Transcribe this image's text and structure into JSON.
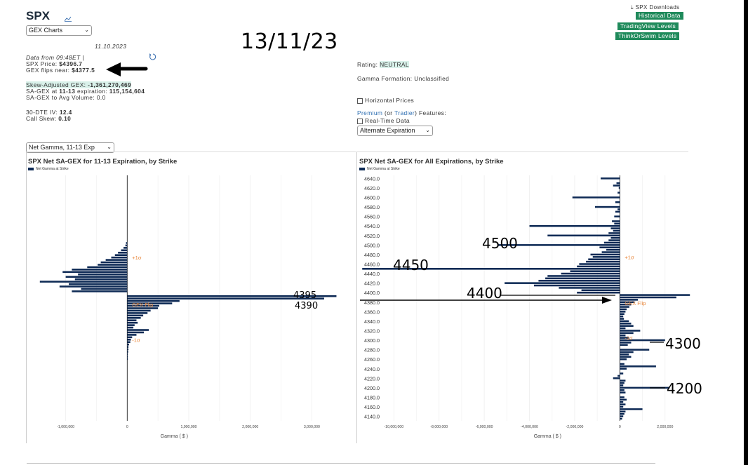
{
  "header": {
    "ticker": "SPX",
    "chart_select": "GEX Charts",
    "date_small": "11.10.2023",
    "big_date": "13/11/23",
    "data_from": "Data from 09:48ET |",
    "price_label": "SPX Price: ",
    "price_value": "$4396.7",
    "flip_label": "GEX flips near: ",
    "flip_value": "$4377.5",
    "skew_label": "Skew-Adjusted GEX: ",
    "skew_value": "-1,361,270,469",
    "sagex_label": "SA-GEX at ",
    "sagex_exp": "11-13",
    "sagex_mid": " expiration: ",
    "sagex_value": "115,154,604",
    "sagex_vol": "SA-GEX to Avg Volume: 0.0",
    "iv_label": "30-DTE IV: ",
    "iv_value": "12.4",
    "skew_call_label": "Call Skew: ",
    "skew_call_value": "0.10"
  },
  "downloads": {
    "title": "SPX Downloads",
    "buttons": [
      "Historical Data",
      "TradingView Levels",
      "ThinkOrSwim Levels"
    ]
  },
  "middle": {
    "rating_label": "Rating: ",
    "rating_value": "NEUTRAL",
    "gamma_formation": "Gamma Formation: Unclassified",
    "horizontal_prices": "Horizontal Prices",
    "premium": "Premium",
    "or": " (or ",
    "tradier": "Tradier",
    "features": ") Features:",
    "realtime": "Real-Time Data",
    "alt_exp": "Alternate Expiration"
  },
  "view_select": "Net Gamma, 11-13 Exp",
  "colors": {
    "bar": "#0e2a55",
    "orange": "#e8863a",
    "green_button": "#1f8a5b"
  },
  "chart_data": [
    {
      "type": "bar",
      "orientation": "horizontal",
      "title": "SPX Net SA-GEX for 11-13 Expiration, by Strike",
      "legend": "Net Gamma at Strike",
      "xlabel": "Gamma ( $ )",
      "xlim": [
        -1600000,
        3600000
      ],
      "xticks": [
        -1000000,
        0,
        1000000,
        2000000,
        3000000
      ],
      "xtick_labels": [
        "-1,000,000",
        "0",
        "1,000,000",
        "2,000,000",
        "3,000,000"
      ],
      "strike_range": [
        4140,
        4645
      ],
      "values": [
        [
          4505,
          -20000
        ],
        [
          4500,
          -30000
        ],
        [
          4495,
          -60000
        ],
        [
          4490,
          -100000
        ],
        [
          4485,
          -150000
        ],
        [
          4480,
          -200000
        ],
        [
          4475,
          -260000
        ],
        [
          4470,
          -350000
        ],
        [
          4465,
          -430000
        ],
        [
          4460,
          -480000
        ],
        [
          4455,
          -650000
        ],
        [
          4450,
          -900000
        ],
        [
          4445,
          -1050000
        ],
        [
          4440,
          -800000
        ],
        [
          4435,
          -1000000
        ],
        [
          4430,
          -850000
        ],
        [
          4425,
          -1420000
        ],
        [
          4420,
          -950000
        ],
        [
          4415,
          -1100000
        ],
        [
          4410,
          -750000
        ],
        [
          4405,
          -900000
        ],
        [
          4395,
          3400000
        ],
        [
          4390,
          3200000
        ],
        [
          4385,
          850000
        ],
        [
          4380,
          730000
        ],
        [
          4375,
          520000
        ],
        [
          4370,
          500000
        ],
        [
          4365,
          380000
        ],
        [
          4360,
          330000
        ],
        [
          4355,
          260000
        ],
        [
          4350,
          220000
        ],
        [
          4345,
          150000
        ],
        [
          4340,
          170000
        ],
        [
          4335,
          120000
        ],
        [
          4330,
          100000
        ],
        [
          4325,
          350000
        ],
        [
          4320,
          270000
        ],
        [
          4315,
          150000
        ],
        [
          4310,
          80000
        ],
        [
          4305,
          60000
        ],
        [
          4300,
          50000
        ],
        [
          4295,
          30000
        ],
        [
          4290,
          20000
        ],
        [
          4285,
          20000
        ],
        [
          4280,
          15000
        ],
        [
          4275,
          10000
        ],
        [
          4270,
          10000
        ],
        [
          4265,
          10000
        ]
      ],
      "annotations": [
        {
          "text": "+1σ",
          "strike": 4475
        },
        {
          "text": "GEX Flip",
          "strike": 4378
        },
        {
          "text": "-1σ",
          "strike": 4305
        }
      ],
      "handwritten": [
        "4395",
        "4390"
      ]
    },
    {
      "type": "bar",
      "orientation": "horizontal",
      "title": "SPX Net SA-GEX for All Expirations, by Strike",
      "legend": "Net Gamma at Strike",
      "xlabel": "Gamma ( $ )",
      "xlim": [
        -11500000,
        3000000
      ],
      "xticks": [
        -10000000,
        -8000000,
        -6000000,
        -4000000,
        -2000000,
        0,
        2000000
      ],
      "xtick_labels": [
        "-10,000,000",
        "-8,000,000",
        "-6,000,000",
        "-4,000,000",
        "-2,000,000",
        "0",
        "2,000,000"
      ],
      "yticks": [
        "4640.0",
        "4620.0",
        "4600.0",
        "4580.0",
        "4560.0",
        "4540.0",
        "4520.0",
        "4500.0",
        "4480.0",
        "4460.0",
        "4440.0",
        "4420.0",
        "4400.0",
        "4380.0",
        "4360.0",
        "4340.0",
        "4320.0",
        "4300.0",
        "4280.0",
        "4260.0",
        "4240.0",
        "4220.0",
        "4200.0",
        "4180.0",
        "4160.0",
        "4140.0"
      ],
      "strike_range": [
        4135,
        4645
      ],
      "values": [
        [
          4650,
          0
        ],
        [
          4640,
          -850000
        ],
        [
          4630,
          -150000
        ],
        [
          4625,
          -300000
        ],
        [
          4620,
          -50000
        ],
        [
          4610,
          -100000
        ],
        [
          4600,
          -2100000
        ],
        [
          4590,
          -200000
        ],
        [
          4580,
          -1100000
        ],
        [
          4575,
          -100000
        ],
        [
          4570,
          -200000
        ],
        [
          4560,
          -250000
        ],
        [
          4550,
          -350000
        ],
        [
          4545,
          -250000
        ],
        [
          4540,
          -4000000
        ],
        [
          4535,
          -400000
        ],
        [
          4530,
          -300000
        ],
        [
          4525,
          -500000
        ],
        [
          4520,
          -3200000
        ],
        [
          4515,
          -400000
        ],
        [
          4510,
          -500000
        ],
        [
          4505,
          -700000
        ],
        [
          4500,
          -5400000
        ],
        [
          4495,
          -900000
        ],
        [
          4490,
          -600000
        ],
        [
          4485,
          -800000
        ],
        [
          4480,
          -1300000
        ],
        [
          4475,
          -1200000
        ],
        [
          4470,
          -1400000
        ],
        [
          4465,
          -1500000
        ],
        [
          4460,
          -1800000
        ],
        [
          4455,
          -1900000
        ],
        [
          4450,
          -11400000
        ],
        [
          4445,
          -2200000
        ],
        [
          4440,
          -2600000
        ],
        [
          4435,
          -3200000
        ],
        [
          4430,
          -3300000
        ],
        [
          4425,
          -3600000
        ],
        [
          4420,
          -5100000
        ],
        [
          4415,
          -3800000
        ],
        [
          4410,
          -2700000
        ],
        [
          4405,
          -1700000
        ],
        [
          4400,
          -1900000
        ],
        [
          4395,
          3100000
        ],
        [
          4390,
          2500000
        ],
        [
          4385,
          800000
        ],
        [
          4380,
          650000
        ],
        [
          4375,
          500000
        ],
        [
          4370,
          420000
        ],
        [
          4365,
          300000
        ],
        [
          4360,
          250000
        ],
        [
          4355,
          200000
        ],
        [
          4350,
          150000
        ],
        [
          4345,
          180000
        ],
        [
          4340,
          400000
        ],
        [
          4335,
          500000
        ],
        [
          4330,
          600000
        ],
        [
          4325,
          250000
        ],
        [
          4320,
          900000
        ],
        [
          4315,
          600000
        ],
        [
          4310,
          250000
        ],
        [
          4305,
          400000
        ],
        [
          4300,
          2000000
        ],
        [
          4295,
          500000
        ],
        [
          4290,
          350000
        ],
        [
          4280,
          1300000
        ],
        [
          4275,
          600000
        ],
        [
          4270,
          400000
        ],
        [
          4265,
          500000
        ],
        [
          4260,
          300000
        ],
        [
          4250,
          200000
        ],
        [
          4245,
          1600000
        ],
        [
          4240,
          300000
        ],
        [
          4230,
          150000
        ],
        [
          4225,
          -100000
        ],
        [
          4220,
          -300000
        ],
        [
          4215,
          250000
        ],
        [
          4210,
          200000
        ],
        [
          4205,
          150000
        ],
        [
          4200,
          2200000
        ],
        [
          4195,
          200000
        ],
        [
          4190,
          250000
        ],
        [
          4180,
          200000
        ],
        [
          4175,
          300000
        ],
        [
          4170,
          150000
        ],
        [
          4165,
          250000
        ],
        [
          4160,
          150000
        ],
        [
          4155,
          1000000
        ],
        [
          4150,
          250000
        ],
        [
          4145,
          200000
        ],
        [
          4140,
          150000
        ],
        [
          4135,
          100000
        ]
      ],
      "annotations": [
        {
          "text": "+1σ",
          "strike": 4475
        },
        {
          "text": "GEX Flip",
          "strike": 4378
        },
        {
          "text": "-1σ",
          "strike": 4305
        }
      ],
      "handwritten": [
        "4500",
        "4450",
        "4400",
        "4300",
        "4200"
      ]
    }
  ]
}
